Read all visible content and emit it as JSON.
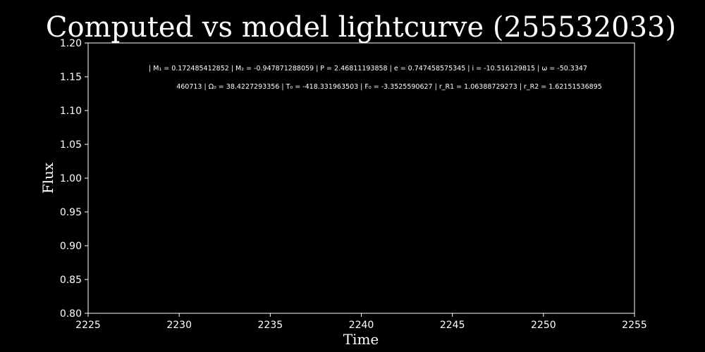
{
  "chart_data": {
    "type": "line",
    "title": "Computed vs model lightcurve (255532033)",
    "xlabel": "Time",
    "ylabel": "Flux",
    "xlim": [
      2225,
      2255
    ],
    "ylim": [
      0.8,
      1.2
    ],
    "xticks": [
      "2225",
      "2230",
      "2235",
      "2240",
      "2245",
      "2250",
      "2255"
    ],
    "yticks": [
      "0.80",
      "0.85",
      "0.90",
      "0.95",
      "1.00",
      "1.05",
      "1.10",
      "1.15",
      "1.20"
    ],
    "grid": false,
    "series": [],
    "annotation_lines": [
      "| M₁ = 0.172485412852 | M₂ = -0.947871288059 | P = 2.46811193858 | e = 0.747458575345 | i = -10.516129815 | ω = -50.3347",
      "460713 | Ω₀ = 38.4227293356 | T₀ = -418.331963503 | F₀ = -3.3525590627 | r_R1 = 1.06388729273 | r_R2 = 1.62151536895"
    ]
  },
  "colors": {
    "background": "#000000",
    "foreground": "#ffffff"
  }
}
